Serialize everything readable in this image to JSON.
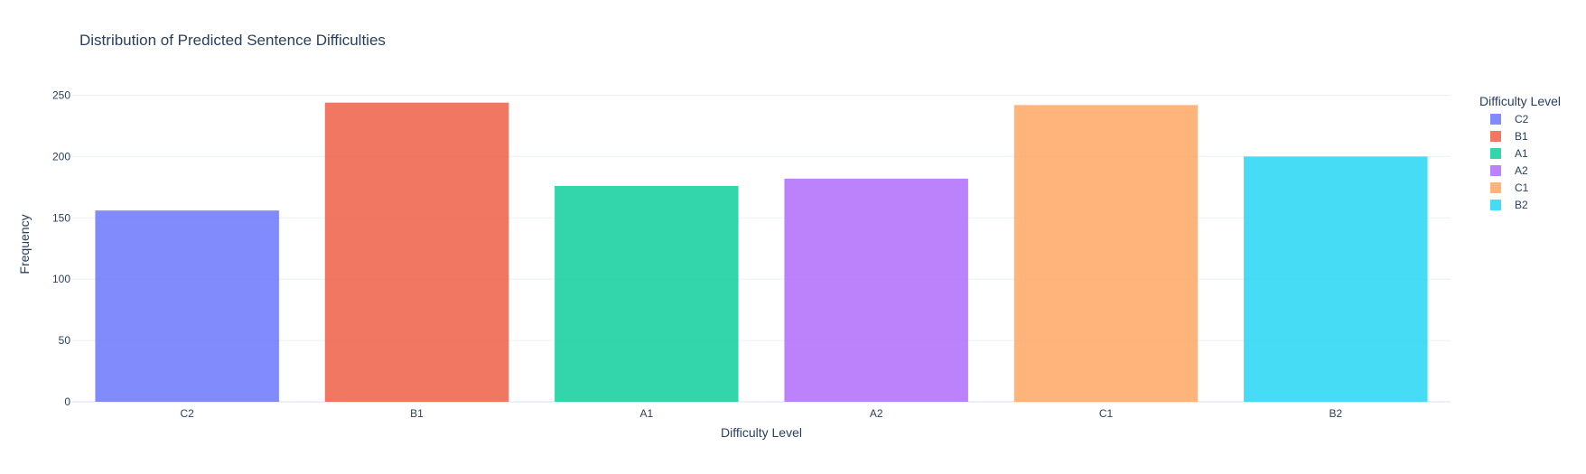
{
  "chart_data": {
    "type": "bar",
    "title": "Distribution of Predicted Sentence Difficulties",
    "xlabel": "Difficulty Level",
    "ylabel": "Frequency",
    "categories": [
      "C2",
      "B1",
      "A1",
      "A2",
      "C1",
      "B2"
    ],
    "values": [
      156,
      244,
      176,
      182,
      242,
      200
    ],
    "colors": [
      "#636efa",
      "#ef553b",
      "#00cc96",
      "#ab63fa",
      "#ffa15a",
      "#19d3f3"
    ],
    "ylim": [
      0,
      257
    ],
    "yticks": [
      0,
      50,
      100,
      150,
      200,
      250
    ],
    "grid": true,
    "legend": {
      "title": "Difficulty Level",
      "position": "right",
      "entries": [
        "C2",
        "B1",
        "A1",
        "A2",
        "C1",
        "B2"
      ]
    }
  }
}
